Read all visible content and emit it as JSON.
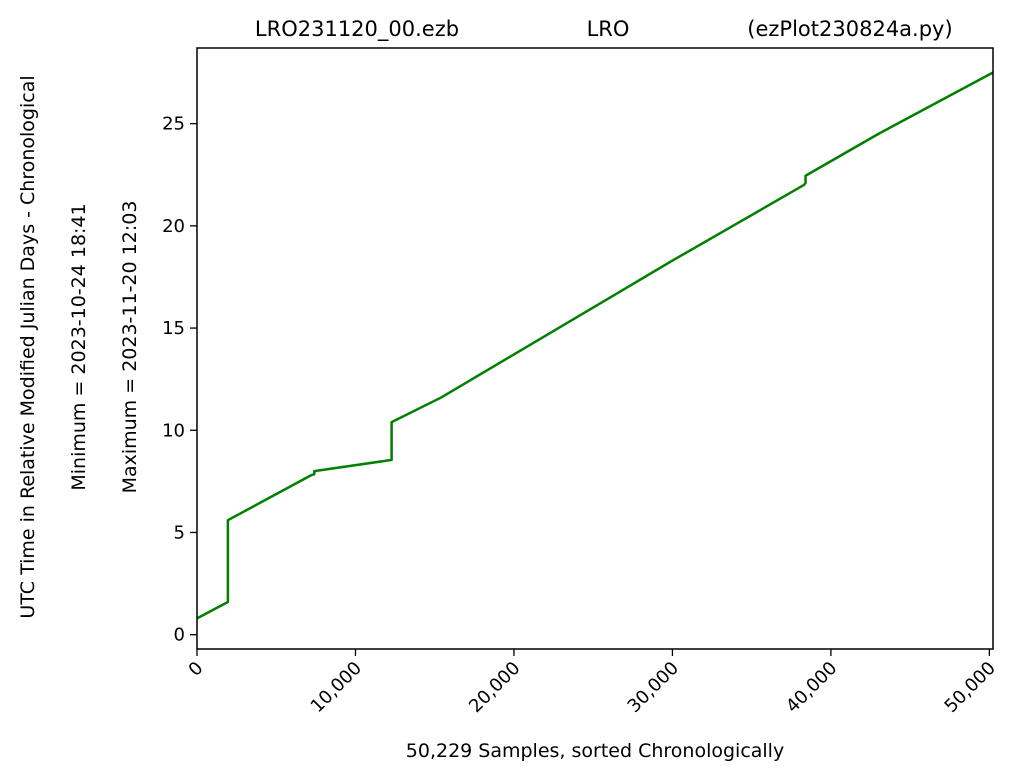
{
  "chart_data": {
    "type": "line",
    "title_left": "LRO231120_00.ezb",
    "title_center": "LRO",
    "title_right": "(ezPlot230824a.py)",
    "xlabel": "50,229 Samples, sorted Chronologically",
    "ylabel": "UTC Time in Relative Modified Julian Days - Chronological",
    "ylabel_min": "Minimum = 2023-10-24   18:41",
    "ylabel_max": "Maximum = 2023-11-20   12:03",
    "xlim": [
      0,
      50229
    ],
    "ylim": [
      -0.7,
      28.7
    ],
    "x_ticks": [
      0,
      10000,
      20000,
      30000,
      40000,
      50000
    ],
    "x_tick_labels": [
      "0",
      "10,000",
      "20,000",
      "30,000",
      "40,000",
      "50,000"
    ],
    "y_ticks": [
      0,
      5,
      10,
      15,
      20,
      25
    ],
    "y_tick_labels": [
      "0",
      "5",
      "10",
      "15",
      "20",
      "25"
    ],
    "grid": false,
    "line_color": "#008000",
    "series": [
      {
        "x": [
          0,
          1950,
          1950,
          7200,
          7400,
          7400,
          12280,
          12280,
          15400,
          30000,
          38300,
          38400,
          38400,
          43000,
          50229
        ],
        "y": [
          0.8,
          1.6,
          5.6,
          7.8,
          7.85,
          8.0,
          8.55,
          10.4,
          11.6,
          18.3,
          22.0,
          22.1,
          22.45,
          24.5,
          27.5
        ]
      }
    ]
  }
}
